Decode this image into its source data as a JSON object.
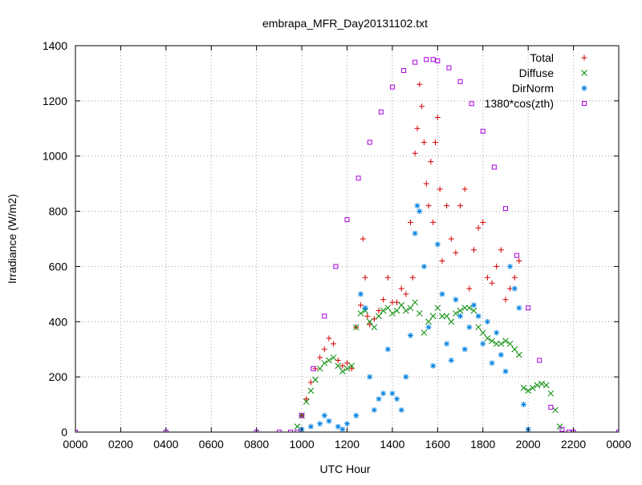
{
  "chart_data": {
    "type": "scatter",
    "title": "embrapa_MFR_Day20131102.txt",
    "xlabel": "UTC Hour",
    "ylabel": "Irradiance (W/m2)",
    "xlim": [
      0,
      2400
    ],
    "ylim": [
      0,
      1400
    ],
    "x_ticks": [
      "0000",
      "0200",
      "0400",
      "0600",
      "0800",
      "1000",
      "1200",
      "1400",
      "1600",
      "1800",
      "2000",
      "2200",
      "0000"
    ],
    "y_ticks": [
      "0",
      "200",
      "400",
      "600",
      "800",
      "1000",
      "1200",
      "1400"
    ],
    "grid": true,
    "legend_position": "top-right",
    "series": [
      {
        "name": "Total",
        "marker": "plus",
        "color": "#d40000",
        "x": [
          1000,
          1020,
          1040,
          1060,
          1080,
          1100,
          1120,
          1140,
          1160,
          1180,
          1200,
          1220,
          1240,
          1260,
          1270,
          1280,
          1290,
          1300,
          1320,
          1340,
          1360,
          1380,
          1400,
          1420,
          1440,
          1460,
          1480,
          1490,
          1500,
          1510,
          1520,
          1530,
          1540,
          1550,
          1560,
          1570,
          1580,
          1590,
          1600,
          1610,
          1620,
          1640,
          1660,
          1680,
          1700,
          1720,
          1740,
          1760,
          1780,
          1800,
          1820,
          1840,
          1860,
          1880,
          1900,
          1920,
          1940,
          1960
        ],
        "y": [
          60,
          120,
          180,
          230,
          270,
          300,
          340,
          320,
          260,
          240,
          250,
          230,
          380,
          460,
          700,
          560,
          420,
          390,
          410,
          440,
          480,
          560,
          470,
          470,
          520,
          500,
          760,
          560,
          1010,
          1100,
          1260,
          1180,
          1050,
          900,
          820,
          980,
          760,
          1050,
          1140,
          880,
          620,
          820,
          700,
          650,
          820,
          880,
          520,
          660,
          740,
          760,
          560,
          540,
          600,
          660,
          480,
          520,
          560,
          620
        ]
      },
      {
        "name": "Diffuse",
        "marker": "cross",
        "color": "#008800",
        "x": [
          980,
          1000,
          1020,
          1040,
          1060,
          1080,
          1100,
          1120,
          1140,
          1160,
          1180,
          1200,
          1220,
          1240,
          1260,
          1280,
          1300,
          1320,
          1340,
          1360,
          1380,
          1400,
          1420,
          1440,
          1460,
          1480,
          1500,
          1520,
          1540,
          1560,
          1580,
          1600,
          1620,
          1640,
          1660,
          1680,
          1700,
          1720,
          1740,
          1760,
          1780,
          1800,
          1820,
          1840,
          1860,
          1880,
          1900,
          1920,
          1940,
          1960,
          1980,
          2000,
          2020,
          2040,
          2060,
          2080,
          2100,
          2120,
          2140
        ],
        "y": [
          20,
          60,
          110,
          150,
          190,
          230,
          250,
          260,
          270,
          240,
          220,
          230,
          240,
          380,
          430,
          440,
          400,
          380,
          420,
          440,
          450,
          430,
          440,
          460,
          440,
          450,
          470,
          430,
          360,
          400,
          420,
          450,
          420,
          420,
          400,
          430,
          440,
          450,
          450,
          440,
          380,
          360,
          340,
          330,
          320,
          320,
          330,
          320,
          300,
          280,
          160,
          150,
          160,
          170,
          175,
          170,
          140,
          80,
          20
        ]
      },
      {
        "name": "DirNorm",
        "marker": "asterisk",
        "color": "#0080e0",
        "x": [
          1000,
          1040,
          1080,
          1100,
          1120,
          1160,
          1180,
          1200,
          1240,
          1260,
          1280,
          1300,
          1320,
          1340,
          1360,
          1380,
          1400,
          1420,
          1440,
          1460,
          1480,
          1500,
          1510,
          1520,
          1540,
          1560,
          1580,
          1600,
          1620,
          1640,
          1660,
          1680,
          1700,
          1720,
          1740,
          1760,
          1780,
          1800,
          1820,
          1840,
          1860,
          1880,
          1900,
          1920,
          1940,
          1960,
          1980,
          2000
        ],
        "y": [
          10,
          20,
          30,
          60,
          40,
          20,
          10,
          30,
          60,
          500,
          450,
          200,
          80,
          120,
          140,
          300,
          140,
          120,
          80,
          200,
          350,
          720,
          820,
          800,
          600,
          380,
          240,
          680,
          500,
          320,
          260,
          480,
          420,
          300,
          380,
          460,
          420,
          320,
          400,
          250,
          360,
          280,
          220,
          600,
          520,
          450,
          100,
          10
        ]
      },
      {
        "name": "1380*cos(zth)",
        "marker": "square",
        "color": "#aa00dd",
        "x": [
          0,
          400,
          800,
          900,
          950,
          980,
          1000,
          1050,
          1100,
          1150,
          1200,
          1250,
          1300,
          1350,
          1400,
          1450,
          1500,
          1550,
          1580,
          1600,
          1650,
          1700,
          1750,
          1800,
          1850,
          1900,
          1950,
          2000,
          2050,
          2100,
          2150,
          2180,
          2200,
          2400
        ],
        "y": [
          0,
          0,
          0,
          0,
          0,
          0,
          60,
          230,
          420,
          600,
          770,
          920,
          1050,
          1160,
          1250,
          1310,
          1340,
          1350,
          1350,
          1345,
          1320,
          1270,
          1190,
          1090,
          960,
          810,
          640,
          450,
          260,
          90,
          10,
          0,
          0,
          0
        ]
      }
    ]
  }
}
